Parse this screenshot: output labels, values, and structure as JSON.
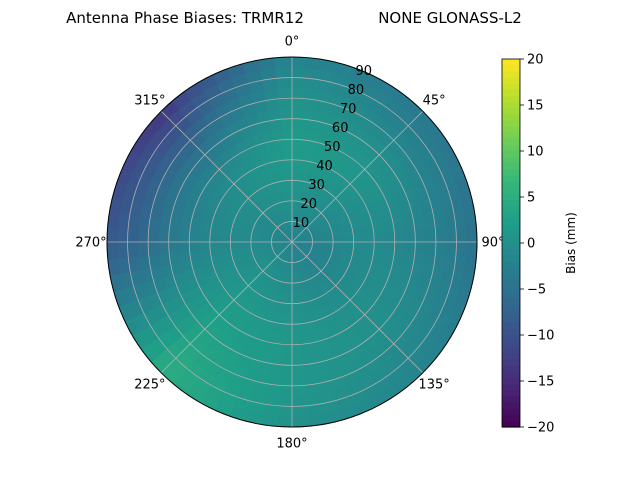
{
  "chart_data": {
    "type": "heatmap",
    "projection": "polar",
    "title": "Antenna Phase Biases: TRMR12",
    "subtitle": "NONE GLONASS-L2",
    "radial_axis": {
      "range": [
        0,
        90
      ],
      "ticks": [
        10,
        20,
        30,
        40,
        50,
        60,
        70,
        80,
        90
      ],
      "tick_labels": [
        "10",
        "20",
        "30",
        "40",
        "50",
        "60",
        "70",
        "80",
        "90"
      ]
    },
    "angular_axis": {
      "zero_location": "top",
      "direction": "clockwise",
      "ticks": [
        0,
        45,
        90,
        135,
        180,
        225,
        270,
        315
      ],
      "tick_labels": [
        "0°",
        "45°",
        "90°",
        "135°",
        "180°",
        "225°",
        "270°",
        "315°"
      ]
    },
    "grid": true,
    "colorbar": {
      "label": "Bias (mm)",
      "range": [
        -20,
        20
      ],
      "ticks": [
        -20,
        -15,
        -10,
        -5,
        0,
        5,
        10,
        15,
        20
      ],
      "tick_labels": [
        "−20",
        "−15",
        "−10",
        "−5",
        "0",
        "5",
        "10",
        "15",
        "20"
      ],
      "colormap": "viridis",
      "placement": "right"
    },
    "bias_grid": {
      "azimuth_bins": [
        0,
        45,
        90,
        135,
        180,
        225,
        270,
        315
      ],
      "zenith_bins": [
        0,
        15,
        30,
        45,
        60,
        75,
        90
      ],
      "values": [
        [
          -2,
          0,
          1,
          2,
          1,
          0,
          -2
        ],
        [
          -2,
          -1,
          0,
          1,
          0,
          -2,
          -4
        ],
        [
          -2,
          -2,
          -1,
          -1,
          -2,
          -3,
          -5
        ],
        [
          -2,
          -2,
          -1,
          0,
          0,
          -1,
          -2
        ],
        [
          -2,
          -1,
          0,
          1,
          1,
          1,
          0
        ],
        [
          -2,
          0,
          1,
          2,
          3,
          4,
          5
        ],
        [
          -2,
          -1,
          -1,
          -2,
          -4,
          -7,
          -9
        ],
        [
          -2,
          -1,
          0,
          -1,
          -4,
          -9,
          -14
        ]
      ]
    }
  }
}
